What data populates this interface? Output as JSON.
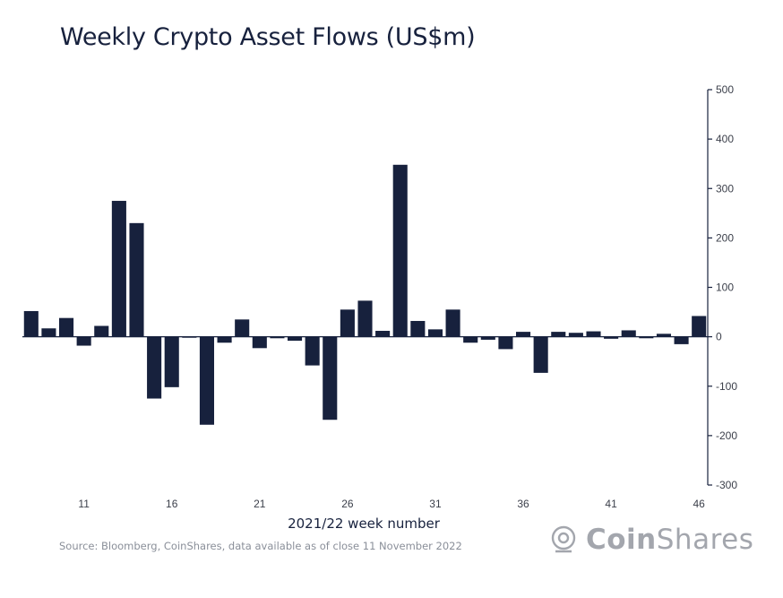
{
  "chart_data": {
    "type": "bar",
    "title": "Weekly Crypto Asset Flows (US$m)",
    "xlabel": "2021/22 week number",
    "ylabel": "",
    "ylim": [
      -300,
      500
    ],
    "yticks": [
      500,
      400,
      300,
      200,
      100,
      0,
      -100,
      -200,
      -300
    ],
    "y_axis_side": "right",
    "bar_color": "#17213d",
    "x": [
      8,
      9,
      10,
      11,
      12,
      13,
      14,
      15,
      16,
      17,
      18,
      19,
      20,
      21,
      22,
      23,
      24,
      25,
      26,
      27,
      28,
      29,
      30,
      31,
      32,
      33,
      34,
      35,
      36,
      37,
      38,
      39,
      40,
      41,
      42,
      43,
      44,
      45,
      46
    ],
    "xtick_labels": [
      "11",
      "16",
      "21",
      "26",
      "31",
      "36",
      "41",
      "46"
    ],
    "values": [
      52,
      17,
      38,
      -18,
      22,
      275,
      230,
      -125,
      -102,
      -2,
      -178,
      -12,
      35,
      -23,
      -3,
      -8,
      -58,
      -168,
      55,
      73,
      12,
      348,
      32,
      15,
      55,
      -12,
      -6,
      -25,
      10,
      -73,
      10,
      8,
      11,
      -4,
      13,
      -3,
      6,
      -15,
      42
    ]
  },
  "source_note": "Source: Bloomberg, CoinShares, data available as of close 11 November 2022",
  "brand": {
    "name_bold": "Coin",
    "name_light": "Shares",
    "icon": "coinshares-logo-icon"
  }
}
